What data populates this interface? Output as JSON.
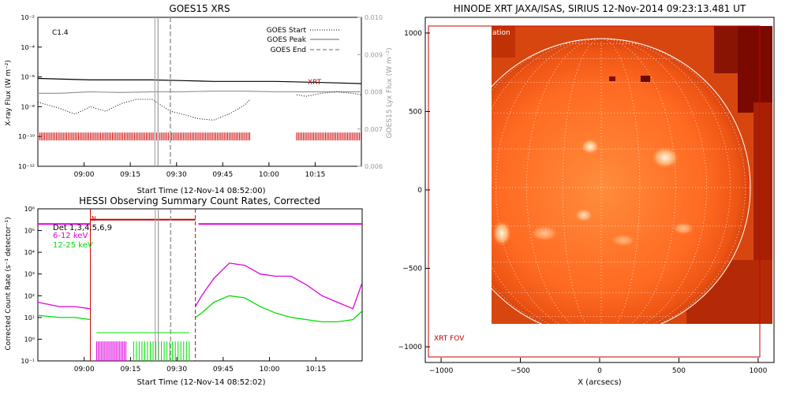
{
  "chart_data": [
    {
      "id": "goes",
      "type": "line",
      "title": "GOES15 XRS",
      "xlabel": "Start Time (12-Nov-14 08:52:00)",
      "ylabel": "X-ray Flux (W m⁻²)",
      "ylabel_right": "GOES15 Lyx Flux (W m⁻²)",
      "x_ticks": [
        "09:00",
        "09:15",
        "09:30",
        "09:45",
        "10:00",
        "10:15"
      ],
      "y_ticks": [
        "10⁻²",
        "10⁻⁴",
        "10⁻⁶",
        "10⁻⁸",
        "10⁻¹⁰",
        "10⁻¹²"
      ],
      "y_right_ticks": [
        "0.010",
        "0.009",
        "0.008",
        "0.007",
        "0.006"
      ],
      "ylim_log10": [
        -12,
        -2
      ],
      "y_right_lim": [
        0.006,
        0.01
      ],
      "annotation": "C1.4",
      "legend": [
        {
          "label": "GOES Start",
          "style": "dotted"
        },
        {
          "label": "GOES Peak",
          "style": "solid"
        },
        {
          "label": "GOES End",
          "style": "dashed"
        }
      ],
      "series_label": "XRT",
      "color_xrt": "#cc0000",
      "xlim_minutes": [
        -7,
        98
      ],
      "markers_minutes": {
        "start": 31,
        "peak": 32,
        "end": 36
      },
      "series": [
        {
          "style": "solid-black",
          "x": [
            -7,
            10,
            20,
            30,
            40,
            50,
            60,
            70,
            80,
            90,
            98
          ],
          "log10_y": [
            -6.1,
            -6.2,
            -6.2,
            -6.2,
            -6.25,
            -6.3,
            -6.3,
            -6.3,
            -6.35,
            -6.4,
            -6.45
          ]
        },
        {
          "style": "solid-gray",
          "x": [
            -7,
            0,
            10,
            20,
            30,
            40,
            50,
            60,
            70,
            80,
            90,
            98
          ],
          "log10_y": [
            -7.1,
            -7.1,
            -7.0,
            -7.05,
            -7.0,
            -7.0,
            -6.95,
            -6.95,
            -7.0,
            -7.0,
            -7.0,
            -7.0
          ]
        },
        {
          "style": "dotted-black",
          "x": [
            -7,
            0,
            5,
            10,
            15,
            20,
            25,
            30,
            33,
            36,
            40,
            45,
            50,
            55,
            60,
            62
          ],
          "log10_y": [
            -7.7,
            -8.1,
            -8.5,
            -8.0,
            -8.3,
            -7.8,
            -7.5,
            -7.5,
            -7.9,
            -8.3,
            -8.5,
            -8.8,
            -8.9,
            -8.5,
            -7.9,
            -7.5
          ]
        },
        {
          "style": "dotted-black",
          "x": [
            77,
            80,
            85,
            90,
            95,
            98
          ],
          "log10_y": [
            -7.2,
            -7.3,
            -7.1,
            -7.0,
            -7.1,
            -7.2
          ]
        }
      ],
      "coverage_minutes": [
        [
          -7,
          62
        ],
        [
          77,
          98
        ]
      ]
    },
    {
      "id": "hessi",
      "type": "line",
      "title": "HESSI Observing Summary Count Rates, Corrected",
      "xlabel": "Start Time (12-Nov-14 08:52:02)",
      "ylabel": "Corrected Count Rate (s⁻¹ detector⁻¹)",
      "x_ticks": [
        "09:00",
        "09:15",
        "09:30",
        "09:45",
        "10:00",
        "10:15"
      ],
      "y_ticks": [
        "10⁶",
        "10⁵",
        "10⁴",
        "10³",
        "10²",
        "10¹",
        "10⁰",
        "10⁻¹"
      ],
      "ylim_log10": [
        -1,
        6
      ],
      "xlim_minutes": [
        -7,
        98
      ],
      "annotation_marker": "N",
      "legend": [
        {
          "label": "Det 1,3,4,5,6,9",
          "color": "#000000"
        },
        {
          "label": "6-12 keV",
          "color": "#e000e0"
        },
        {
          "label": "12-25 keV",
          "color": "#00dd00"
        }
      ],
      "attenuator_level_log10": 5.3,
      "night_minutes": [
        [
          10,
          44
        ]
      ],
      "markers_minutes": {
        "start": 31,
        "peak": 32,
        "end": 36
      },
      "series": [
        {
          "name": "6-12 keV",
          "color": "#e000e0",
          "x": [
            -7,
            0,
            5,
            10,
            44,
            46,
            50,
            55,
            60,
            65,
            70,
            75,
            80,
            85,
            90,
            95,
            98
          ],
          "log10_y": [
            1.7,
            1.5,
            1.5,
            1.4,
            1.5,
            2.0,
            2.8,
            3.5,
            3.4,
            3.0,
            2.9,
            2.9,
            2.5,
            2.0,
            1.7,
            1.4,
            2.6
          ]
        },
        {
          "name": "12-25 keV",
          "color": "#00dd00",
          "x": [
            -7,
            0,
            5,
            10,
            44,
            46,
            50,
            55,
            60,
            65,
            70,
            75,
            80,
            85,
            90,
            95,
            98
          ],
          "log10_y": [
            1.1,
            1.0,
            1.0,
            0.9,
            1.0,
            1.2,
            1.7,
            2.0,
            1.9,
            1.5,
            1.2,
            1.0,
            0.9,
            0.8,
            0.8,
            0.9,
            1.3
          ]
        }
      ]
    },
    {
      "id": "xrt",
      "type": "image",
      "title": "HINODE XRT JAXA/ISAS, SIRIUS 12-Nov-2014 09:23:13.481 UT",
      "xlabel": "X (arcsecs)",
      "ylabel": "",
      "x_ticks": [
        "−1000",
        "−500",
        "0",
        "500",
        "1000"
      ],
      "y_ticks": [
        "1000",
        "500",
        "0",
        "−500",
        "−1000"
      ],
      "xlim": [
        -1100,
        1100
      ],
      "ylim": [
        -1100,
        1100
      ],
      "fov_label": "XRT FOV",
      "top_label_fragment": "ation",
      "colors": {
        "disk": "#ff5a1a",
        "dark": "#7a0a00",
        "bright": "#ffe0b0",
        "fov": "#cc0000"
      }
    }
  ]
}
